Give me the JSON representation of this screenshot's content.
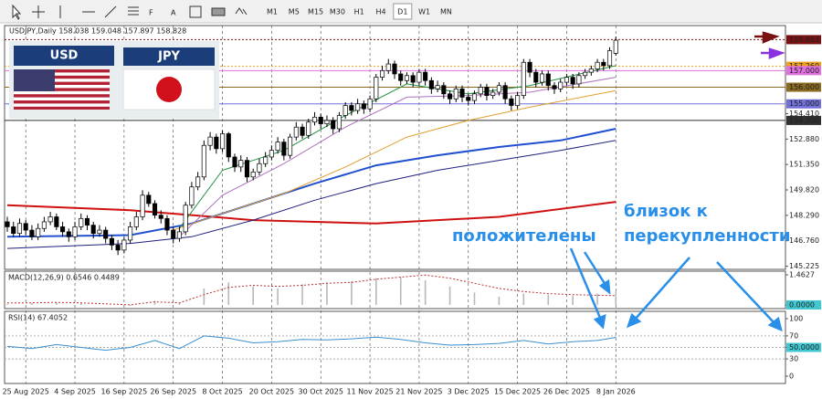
{
  "toolbar": {
    "timeframes": [
      "M1",
      "M5",
      "M15",
      "M30",
      "H1",
      "H4",
      "D1",
      "W1",
      "MN"
    ],
    "selected": "D1"
  },
  "flags": {
    "left": "USD",
    "right": "JPY"
  },
  "chart_data": [
    {
      "type": "candlestick",
      "title": "USDJPY,Daily  158.038 159.048 157.897 158.828",
      "grid": true,
      "ylim": [
        145.04,
        159.71
      ],
      "yticks": [
        145.225,
        {
          "value": 146.76,
          "label": "146.760"
        },
        {
          "value": 148.29,
          "label": "148.290"
        },
        {
          "value": 149.82,
          "label": "149.820"
        },
        {
          "value": 151.35,
          "label": "151.350"
        },
        {
          "value": 152.88,
          "label": "152.880"
        },
        {
          "value": 154.41,
          "label": "154.410"
        }
      ],
      "levels": [
        {
          "price": 158.863,
          "color": "#7a1010",
          "dash": true
        },
        {
          "price": {
            "value": 157.26,
            "label": "157.260"
          },
          "color": "#f0a020",
          "dash": true
        },
        {
          "price": {
            "value": 157,
            "label": "157.000"
          },
          "color": "#e070e0",
          "dash": false
        },
        {
          "price": {
            "value": 156,
            "label": "156.000"
          },
          "color": "#8a6a20",
          "dash": false
        },
        {
          "price": {
            "value": 155,
            "label": "155.000"
          },
          "color": "#7070d8",
          "dash": false
        },
        {
          "price": {
            "value": 154,
            "label": "154.000"
          },
          "color": "#303030",
          "dash": false
        }
      ],
      "categories": [
        null,
        null,
        null,
        "25 Aug 2025",
        null,
        null,
        null,
        null,
        null,
        null,
        null,
        "4 Sep 2025",
        null,
        null,
        null,
        null,
        null,
        null,
        null,
        "16 Sep 2025",
        null,
        null,
        null,
        null,
        null,
        null,
        null,
        "26 Sep 2025",
        null,
        null,
        null,
        null,
        null,
        null,
        null,
        "8 Oct 2025",
        null,
        null,
        null,
        null,
        null,
        null,
        null,
        "20 Oct 2025",
        null,
        null,
        null,
        null,
        null,
        null,
        null,
        "30 Oct 2025",
        null,
        null,
        null,
        null,
        null,
        null,
        null,
        "11 Nov 2025",
        null,
        null,
        null,
        null,
        null,
        null,
        null,
        "21 Nov 2025",
        null,
        null,
        null,
        null,
        null,
        null,
        null,
        "3 Dec 2025",
        null,
        null,
        null,
        null,
        null,
        null,
        null,
        "15 Dec 2025",
        null,
        null,
        null,
        null,
        null,
        null,
        null,
        "26 Dec 2025",
        null,
        null,
        null,
        null,
        null,
        null,
        null,
        "8 Jan 2026"
      ],
      "ohlc": [
        [
          147.9,
          148.2,
          147.3,
          147.6
        ],
        [
          147.6,
          147.9,
          147.0,
          147.2
        ],
        [
          147.2,
          148.1,
          147.0,
          147.8
        ],
        [
          147.8,
          148.0,
          147.1,
          147.4
        ],
        [
          147.4,
          147.7,
          146.8,
          147.0
        ],
        [
          147.0,
          147.8,
          146.8,
          147.5
        ],
        [
          147.5,
          148.2,
          147.3,
          147.9
        ],
        [
          147.9,
          148.5,
          147.7,
          148.2
        ],
        [
          148.2,
          148.4,
          147.4,
          147.6
        ],
        [
          147.6,
          147.9,
          147.0,
          147.3
        ],
        [
          147.3,
          147.5,
          146.7,
          147.0
        ],
        [
          147.0,
          147.9,
          146.8,
          147.6
        ],
        [
          147.6,
          148.4,
          147.4,
          148.1
        ],
        [
          148.1,
          148.3,
          147.4,
          147.7
        ],
        [
          147.7,
          147.9,
          146.9,
          147.2
        ],
        [
          147.2,
          147.7,
          147.0,
          147.4
        ],
        [
          147.4,
          147.6,
          146.6,
          146.9
        ],
        [
          146.9,
          147.1,
          146.2,
          146.5
        ],
        [
          146.5,
          146.8,
          145.9,
          146.2
        ],
        [
          146.2,
          147.0,
          146.0,
          146.8
        ],
        [
          146.8,
          147.9,
          146.6,
          147.6
        ],
        [
          147.6,
          148.5,
          147.4,
          148.2
        ],
        [
          148.2,
          149.8,
          148.0,
          149.5
        ],
        [
          149.5,
          149.7,
          148.8,
          149.0
        ],
        [
          149.0,
          149.2,
          148.1,
          148.3
        ],
        [
          148.3,
          148.6,
          147.8,
          148.1
        ],
        [
          148.1,
          148.3,
          147.1,
          147.4
        ],
        [
          147.4,
          147.6,
          146.6,
          146.9
        ],
        [
          146.9,
          147.6,
          146.7,
          147.3
        ],
        [
          147.3,
          149.1,
          147.1,
          148.9
        ],
        [
          148.9,
          150.3,
          148.7,
          150.0
        ],
        [
          150.0,
          150.9,
          149.8,
          150.6
        ],
        [
          150.6,
          152.8,
          150.4,
          152.5
        ],
        [
          152.5,
          153.3,
          152.2,
          153.0
        ],
        [
          153.0,
          153.2,
          152.0,
          152.3
        ],
        [
          152.3,
          153.4,
          152.1,
          153.2
        ],
        [
          153.2,
          153.3,
          151.5,
          151.8
        ],
        [
          151.8,
          152.0,
          150.9,
          151.2
        ],
        [
          151.2,
          151.9,
          150.9,
          151.6
        ],
        [
          151.6,
          151.8,
          150.3,
          150.6
        ],
        [
          150.6,
          151.1,
          150.4,
          150.9
        ],
        [
          150.9,
          151.7,
          150.7,
          151.4
        ],
        [
          151.4,
          152.1,
          151.2,
          151.8
        ],
        [
          151.8,
          152.5,
          151.6,
          152.2
        ],
        [
          152.2,
          153.0,
          152.0,
          152.7
        ],
        [
          152.7,
          152.9,
          151.6,
          151.9
        ],
        [
          151.9,
          153.2,
          151.7,
          153.0
        ],
        [
          153.0,
          153.9,
          152.8,
          153.6
        ],
        [
          153.6,
          153.8,
          152.9,
          153.1
        ],
        [
          153.1,
          154.1,
          152.9,
          153.9
        ],
        [
          153.9,
          154.5,
          153.7,
          154.2
        ],
        [
          154.2,
          154.4,
          153.5,
          153.8
        ],
        [
          153.8,
          154.3,
          153.6,
          154.0
        ],
        [
          154.0,
          154.2,
          153.2,
          153.5
        ],
        [
          153.5,
          154.5,
          153.3,
          154.3
        ],
        [
          154.3,
          155.1,
          154.1,
          154.9
        ],
        [
          154.9,
          155.1,
          154.3,
          154.6
        ],
        [
          154.6,
          155.3,
          154.4,
          155.0
        ],
        [
          155.0,
          155.2,
          154.4,
          154.7
        ],
        [
          154.7,
          155.5,
          154.5,
          155.3
        ],
        [
          155.3,
          156.8,
          155.1,
          156.6
        ],
        [
          156.6,
          157.3,
          156.4,
          157.0
        ],
        [
          157.0,
          157.7,
          156.8,
          157.4
        ],
        [
          157.4,
          157.6,
          156.5,
          156.8
        ],
        [
          156.8,
          157.0,
          156.1,
          156.4
        ],
        [
          156.4,
          156.9,
          156.2,
          156.7
        ],
        [
          156.7,
          156.9,
          156.0,
          156.3
        ],
        [
          156.3,
          157.1,
          156.1,
          156.9
        ],
        [
          156.9,
          157.1,
          156.1,
          156.4
        ],
        [
          156.4,
          156.6,
          155.6,
          155.9
        ],
        [
          155.9,
          156.4,
          155.7,
          156.1
        ],
        [
          156.1,
          156.3,
          155.3,
          155.6
        ],
        [
          155.6,
          155.8,
          155.0,
          155.3
        ],
        [
          155.3,
          156.1,
          155.1,
          155.9
        ],
        [
          155.9,
          156.1,
          155.1,
          155.4
        ],
        [
          155.4,
          155.6,
          154.9,
          155.2
        ],
        [
          155.2,
          155.8,
          155.0,
          155.6
        ],
        [
          155.6,
          156.2,
          155.4,
          156.0
        ],
        [
          156.0,
          156.2,
          155.2,
          155.5
        ],
        [
          155.5,
          155.9,
          155.3,
          155.7
        ],
        [
          155.7,
          156.3,
          155.5,
          156.1
        ],
        [
          156.1,
          156.3,
          155.0,
          155.3
        ],
        [
          155.3,
          155.5,
          154.6,
          154.9
        ],
        [
          154.9,
          155.7,
          154.7,
          155.5
        ],
        [
          155.5,
          157.7,
          155.3,
          157.5
        ],
        [
          157.5,
          157.7,
          156.6,
          156.9
        ],
        [
          156.9,
          157.1,
          156.0,
          156.3
        ],
        [
          156.3,
          157.0,
          156.1,
          156.8
        ],
        [
          156.8,
          157.0,
          155.8,
          156.1
        ],
        [
          156.1,
          156.3,
          155.6,
          155.9
        ],
        [
          155.9,
          156.5,
          155.7,
          156.3
        ],
        [
          156.3,
          156.8,
          156.1,
          156.6
        ],
        [
          156.6,
          156.8,
          155.9,
          156.2
        ],
        [
          156.2,
          156.9,
          156.0,
          156.7
        ],
        [
          156.7,
          157.1,
          156.5,
          156.9
        ],
        [
          156.9,
          157.3,
          156.7,
          157.1
        ],
        [
          157.1,
          157.7,
          156.9,
          157.5
        ],
        [
          157.5,
          157.7,
          157.0,
          157.3
        ],
        [
          157.3,
          158.4,
          157.1,
          158.2
        ],
        [
          158.038,
          159.048,
          157.897,
          158.828
        ]
      ],
      "series": [
        {
          "color": "#d01010",
          "width": 2,
          "x": [
            0,
            20,
            40,
            60,
            80,
            99
          ],
          "values": [
            148.9,
            148.6,
            148.0,
            147.8,
            148.2,
            149.1
          ]
        },
        {
          "color": "#2050d0",
          "width": 2,
          "x": [
            0,
            20,
            30,
            40,
            50,
            60,
            70,
            80,
            90,
            99
          ],
          "values": [
            147.0,
            147.1,
            147.8,
            149.0,
            150.2,
            151.3,
            151.9,
            152.4,
            152.8,
            153.5
          ]
        },
        {
          "color": "#202080",
          "width": 1,
          "x": [
            0,
            20,
            30,
            40,
            50,
            60,
            70,
            80,
            90,
            99
          ],
          "values": [
            146.3,
            146.6,
            147.0,
            148.0,
            149.2,
            150.2,
            151.0,
            151.6,
            152.2,
            152.8
          ]
        },
        {
          "color": "#e0a030",
          "width": 1,
          "x": [
            27,
            35,
            45,
            55,
            65,
            75,
            85,
            99
          ],
          "values": [
            147.4,
            148.4,
            149.6,
            151.2,
            153.0,
            154.0,
            154.8,
            155.8
          ]
        },
        {
          "color": "#b070c0",
          "width": 1,
          "x": [
            28,
            35,
            45,
            55,
            65,
            75,
            85,
            99
          ],
          "values": [
            147.0,
            149.5,
            151.4,
            153.6,
            155.4,
            155.5,
            155.7,
            156.6
          ]
        },
        {
          "color": "#209040",
          "width": 1,
          "x": [
            28,
            35,
            45,
            55,
            65,
            75,
            85,
            99
          ],
          "values": [
            147.5,
            151.0,
            152.2,
            154.3,
            156.2,
            155.6,
            156.1,
            157.3
          ]
        }
      ],
      "annotations": [
        "положителены",
        "близок к",
        "перекупленности"
      ]
    },
    {
      "type": "macd",
      "title": "MACD(12,26,9) 0.6546 0.4489",
      "ylim": [
        -0.18,
        1.64
      ],
      "yticks": [
        1.4627,
        {
          "value": 0,
          "label": "0.0000"
        }
      ],
      "x": [
        0,
        4,
        8,
        12,
        16,
        20,
        24,
        28,
        32,
        36,
        40,
        44,
        48,
        52,
        56,
        60,
        64,
        68,
        72,
        76,
        80,
        84,
        88,
        92,
        96,
        99
      ],
      "histogram": [
        0.05,
        0.1,
        0.12,
        0.1,
        0.0,
        -0.05,
        0.2,
        0.1,
        0.8,
        1.1,
        0.9,
        0.8,
        1.0,
        1.1,
        1.15,
        1.3,
        1.35,
        1.2,
        0.9,
        0.6,
        0.4,
        0.55,
        0.5,
        0.45,
        0.55,
        0.6546
      ],
      "signal": [
        0.1,
        0.1,
        0.12,
        0.1,
        0.05,
        0.0,
        0.15,
        0.1,
        0.5,
        0.85,
        0.95,
        0.9,
        0.95,
        1.05,
        1.1,
        1.25,
        1.35,
        1.45,
        1.3,
        1.05,
        0.8,
        0.65,
        0.55,
        0.5,
        0.47,
        0.4489
      ],
      "colors": {
        "histogram": "#b8b8b8",
        "signal": "#c03030",
        "box": "#40c8d0"
      }
    },
    {
      "type": "line",
      "title": "RSI(14) 67.4052",
      "ylim": [
        -12.7,
        112.7
      ],
      "yticks": [
        100,
        70,
        {
          "value": 50,
          "label": "50.0000"
        },
        30,
        0
      ],
      "levels": [
        70,
        50,
        30
      ],
      "x": [
        0,
        4,
        8,
        12,
        16,
        20,
        24,
        28,
        32,
        36,
        40,
        44,
        48,
        52,
        56,
        60,
        64,
        68,
        72,
        76,
        80,
        84,
        88,
        92,
        96,
        99
      ],
      "values": [
        52,
        48,
        55,
        50,
        45,
        50,
        62,
        48,
        70,
        66,
        58,
        60,
        64,
        63,
        65,
        68,
        64,
        58,
        54,
        55,
        57,
        62,
        56,
        60,
        62,
        67.4052
      ],
      "colors": {
        "line": "#3a8fd0",
        "box": "#40c8d0"
      }
    }
  ]
}
